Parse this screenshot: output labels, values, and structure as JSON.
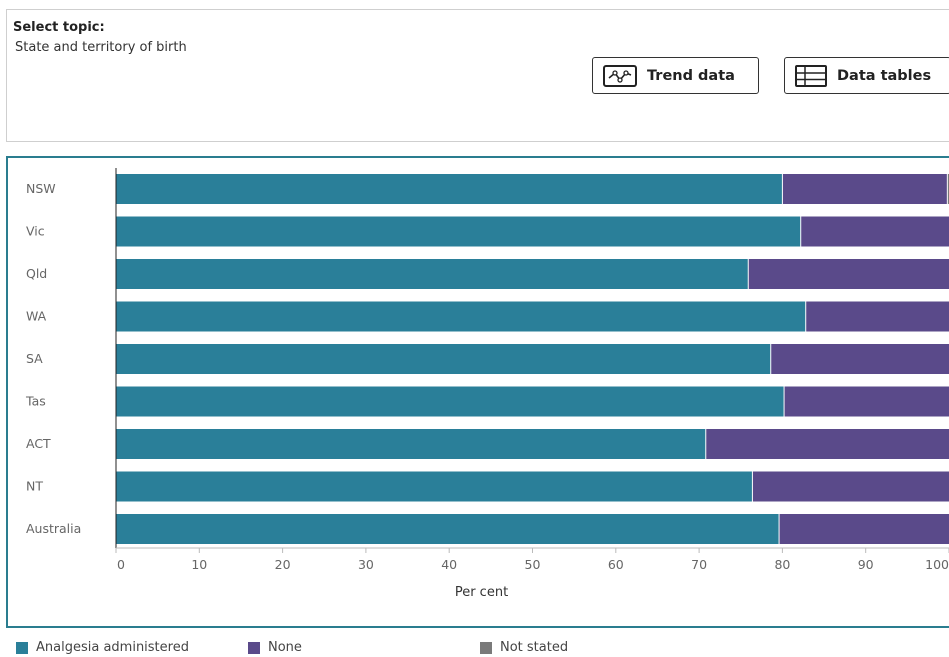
{
  "topic": {
    "label": "Select topic:",
    "value": "State and territory of birth"
  },
  "buttons": {
    "trend": "Trend data",
    "tables": "Data tables"
  },
  "chart_data": {
    "type": "bar",
    "orientation": "horizontal",
    "stacked": true,
    "categories": [
      "NSW",
      "Vic",
      "Qld",
      "WA",
      "SA",
      "Tas",
      "ACT",
      "NT",
      "Australia"
    ],
    "series": [
      {
        "name": "Analgesia administered",
        "color": "#2a7f99",
        "values": [
          80.0,
          82.2,
          75.9,
          82.8,
          78.6,
          80.2,
          70.8,
          76.4,
          79.6
        ]
      },
      {
        "name": "None",
        "color": "#5a4a8a",
        "values": [
          19.8,
          17.8,
          24.1,
          17.2,
          21.4,
          19.8,
          29.2,
          23.6,
          20.4
        ]
      },
      {
        "name": "Not stated",
        "color": "#7a7a7a",
        "values": [
          0.2,
          0,
          0,
          0,
          0,
          0,
          0,
          0,
          0
        ]
      }
    ],
    "xlabel": "Per cent",
    "xlim": [
      0,
      100
    ],
    "xticks": [
      "0",
      "10",
      "20",
      "30",
      "40",
      "50",
      "60",
      "70",
      "80",
      "90",
      "100"
    ],
    "legend_position": "bottom"
  }
}
